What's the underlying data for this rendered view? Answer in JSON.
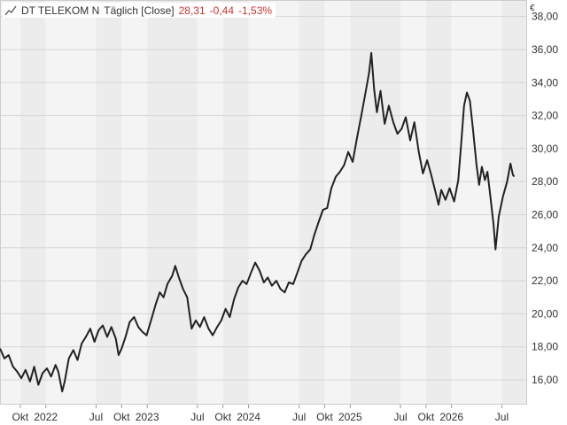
{
  "header": {
    "symbol": "DT TELEKOM N",
    "interval": "Täglich [Close]",
    "last": "28,31",
    "change": "-0,44",
    "change_pct": "-1,53%",
    "icon": "line-chart-icon",
    "negative_color": "#d0312d"
  },
  "chart_data": {
    "type": "line",
    "unit_label": "€",
    "ylim": [
      14.5,
      39.0
    ],
    "y_ticks": [
      16,
      18,
      20,
      22,
      24,
      26,
      28,
      30,
      32,
      34,
      36,
      38
    ],
    "y_tick_labels": [
      "16,00",
      "18,00",
      "20,00",
      "22,00",
      "24,00",
      "26,00",
      "28,00",
      "30,00",
      "32,00",
      "34,00",
      "36,00",
      "38,00"
    ],
    "x_range": [
      "2021-07-20",
      "2026-09-30"
    ],
    "x_ticks": [
      {
        "date": "2021-10-01",
        "label": "Okt"
      },
      {
        "date": "2022-01-01",
        "label": "2022"
      },
      {
        "date": "2022-07-01",
        "label": "Jul"
      },
      {
        "date": "2022-10-01",
        "label": "Okt"
      },
      {
        "date": "2023-01-01",
        "label": "2023"
      },
      {
        "date": "2023-07-01",
        "label": "Jul"
      },
      {
        "date": "2023-10-01",
        "label": "Okt"
      },
      {
        "date": "2024-01-01",
        "label": "2024"
      },
      {
        "date": "2024-07-01",
        "label": "Jul"
      },
      {
        "date": "2024-10-01",
        "label": "Okt"
      },
      {
        "date": "2025-01-01",
        "label": "2025"
      },
      {
        "date": "2025-07-01",
        "label": "Jul"
      },
      {
        "date": "2025-10-01",
        "label": "Okt"
      },
      {
        "date": "2026-01-01",
        "label": "2026"
      },
      {
        "date": "2026-07-01",
        "label": "Jul"
      }
    ],
    "grid": true,
    "series": [
      {
        "color": "#222222",
        "points": [
          [
            "2021-07-20",
            17.9
          ],
          [
            "2021-08-05",
            17.3
          ],
          [
            "2021-08-20",
            17.5
          ],
          [
            "2021-09-05",
            16.8
          ],
          [
            "2021-09-20",
            16.5
          ],
          [
            "2021-10-05",
            16.1
          ],
          [
            "2021-10-20",
            16.6
          ],
          [
            "2021-11-05",
            15.9
          ],
          [
            "2021-11-20",
            16.8
          ],
          [
            "2021-12-05",
            15.7
          ],
          [
            "2021-12-20",
            16.4
          ],
          [
            "2022-01-05",
            16.7
          ],
          [
            "2022-01-20",
            16.2
          ],
          [
            "2022-02-05",
            16.9
          ],
          [
            "2022-02-15",
            16.5
          ],
          [
            "2022-03-01",
            15.3
          ],
          [
            "2022-03-10",
            15.9
          ],
          [
            "2022-03-25",
            17.3
          ],
          [
            "2022-04-10",
            17.8
          ],
          [
            "2022-04-25",
            17.2
          ],
          [
            "2022-05-10",
            18.2
          ],
          [
            "2022-05-25",
            18.6
          ],
          [
            "2022-06-10",
            19.1
          ],
          [
            "2022-06-25",
            18.3
          ],
          [
            "2022-07-10",
            19.0
          ],
          [
            "2022-07-25",
            19.3
          ],
          [
            "2022-08-10",
            18.6
          ],
          [
            "2022-08-25",
            19.2
          ],
          [
            "2022-09-10",
            18.5
          ],
          [
            "2022-09-20",
            17.5
          ],
          [
            "2022-10-01",
            17.9
          ],
          [
            "2022-10-15",
            18.6
          ],
          [
            "2022-10-30",
            19.5
          ],
          [
            "2022-11-15",
            19.8
          ],
          [
            "2022-11-30",
            19.2
          ],
          [
            "2022-12-15",
            18.9
          ],
          [
            "2022-12-30",
            18.7
          ],
          [
            "2023-01-15",
            19.6
          ],
          [
            "2023-02-01",
            20.6
          ],
          [
            "2023-02-15",
            21.3
          ],
          [
            "2023-03-01",
            21.0
          ],
          [
            "2023-03-15",
            21.8
          ],
          [
            "2023-04-01",
            22.3
          ],
          [
            "2023-04-12",
            22.9
          ],
          [
            "2023-04-25",
            22.2
          ],
          [
            "2023-05-10",
            21.5
          ],
          [
            "2023-05-25",
            21.0
          ],
          [
            "2023-06-10",
            19.1
          ],
          [
            "2023-06-25",
            19.6
          ],
          [
            "2023-07-10",
            19.2
          ],
          [
            "2023-07-25",
            19.8
          ],
          [
            "2023-08-10",
            19.1
          ],
          [
            "2023-08-25",
            18.7
          ],
          [
            "2023-09-10",
            19.2
          ],
          [
            "2023-09-25",
            19.6
          ],
          [
            "2023-10-10",
            20.3
          ],
          [
            "2023-10-25",
            19.8
          ],
          [
            "2023-11-10",
            20.9
          ],
          [
            "2023-11-25",
            21.6
          ],
          [
            "2023-12-10",
            22.0
          ],
          [
            "2023-12-25",
            21.8
          ],
          [
            "2024-01-10",
            22.5
          ],
          [
            "2024-01-25",
            23.1
          ],
          [
            "2024-02-10",
            22.6
          ],
          [
            "2024-02-25",
            21.9
          ],
          [
            "2024-03-10",
            22.2
          ],
          [
            "2024-03-25",
            21.7
          ],
          [
            "2024-04-10",
            22.0
          ],
          [
            "2024-04-25",
            21.5
          ],
          [
            "2024-05-10",
            21.3
          ],
          [
            "2024-05-25",
            21.9
          ],
          [
            "2024-06-10",
            21.8
          ],
          [
            "2024-06-25",
            22.5
          ],
          [
            "2024-07-10",
            23.2
          ],
          [
            "2024-07-25",
            23.6
          ],
          [
            "2024-08-10",
            23.9
          ],
          [
            "2024-08-25",
            24.8
          ],
          [
            "2024-09-10",
            25.6
          ],
          [
            "2024-09-25",
            26.3
          ],
          [
            "2024-10-10",
            26.4
          ],
          [
            "2024-10-25",
            27.6
          ],
          [
            "2024-11-10",
            28.3
          ],
          [
            "2024-11-25",
            28.6
          ],
          [
            "2024-12-10",
            29.0
          ],
          [
            "2024-12-25",
            29.8
          ],
          [
            "2025-01-10",
            29.2
          ],
          [
            "2025-01-25",
            30.6
          ],
          [
            "2025-02-10",
            32.0
          ],
          [
            "2025-02-25",
            33.4
          ],
          [
            "2025-03-10",
            34.6
          ],
          [
            "2025-03-18",
            35.8
          ],
          [
            "2025-03-28",
            33.6
          ],
          [
            "2025-04-07",
            32.2
          ],
          [
            "2025-04-20",
            33.5
          ],
          [
            "2025-05-05",
            31.5
          ],
          [
            "2025-05-20",
            32.6
          ],
          [
            "2025-06-05",
            31.6
          ],
          [
            "2025-06-20",
            30.9
          ],
          [
            "2025-07-05",
            31.2
          ],
          [
            "2025-07-20",
            31.9
          ],
          [
            "2025-08-05",
            30.5
          ],
          [
            "2025-08-20",
            31.6
          ],
          [
            "2025-09-05",
            29.8
          ],
          [
            "2025-09-20",
            28.5
          ],
          [
            "2025-10-05",
            29.3
          ],
          [
            "2025-10-20",
            28.4
          ],
          [
            "2025-11-05",
            27.3
          ],
          [
            "2025-11-15",
            26.6
          ],
          [
            "2025-11-25",
            27.5
          ],
          [
            "2025-12-10",
            26.9
          ],
          [
            "2025-12-25",
            27.6
          ],
          [
            "2026-01-10",
            26.8
          ],
          [
            "2026-01-25",
            28.1
          ],
          [
            "2026-02-05",
            30.4
          ],
          [
            "2026-02-15",
            32.6
          ],
          [
            "2026-02-25",
            33.4
          ],
          [
            "2026-03-08",
            32.9
          ],
          [
            "2026-03-20",
            31.0
          ],
          [
            "2026-04-01",
            29.0
          ],
          [
            "2026-04-10",
            27.8
          ],
          [
            "2026-04-20",
            28.9
          ],
          [
            "2026-05-01",
            28.1
          ],
          [
            "2026-05-10",
            28.6
          ],
          [
            "2026-05-20",
            27.2
          ],
          [
            "2026-06-01",
            25.4
          ],
          [
            "2026-06-08",
            23.9
          ],
          [
            "2026-06-20",
            25.9
          ],
          [
            "2026-07-05",
            27.1
          ],
          [
            "2026-07-20",
            28.0
          ],
          [
            "2026-08-01",
            29.1
          ],
          [
            "2026-08-10",
            28.4
          ],
          [
            "2026-08-15",
            28.31
          ]
        ]
      }
    ]
  }
}
